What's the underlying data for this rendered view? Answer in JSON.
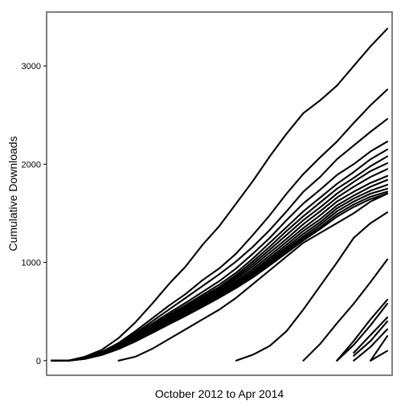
{
  "chart_data": {
    "type": "line",
    "title": "",
    "xlabel": "October 2012 to Apr 2014",
    "ylabel": "Cumulative Downloads",
    "x_label_display": "October 2012 to Apr 2014",
    "y_label_display": "Cumulative Downloads",
    "x": [
      0,
      5,
      10,
      15,
      20,
      25,
      30,
      35,
      40,
      45,
      50,
      55,
      60,
      65,
      70,
      75,
      80,
      85,
      90,
      95,
      100
    ],
    "xlim": [
      0,
      100
    ],
    "ylim": [
      -100,
      3500
    ],
    "yticks": [
      0,
      1000,
      2000,
      3000
    ],
    "ytick_labels": [
      "0",
      "1000",
      "2000",
      "3000"
    ],
    "grid": false,
    "legend": "none",
    "colors": {
      "line": "#000000",
      "border": "#7f7f7f",
      "background": "#ffffff"
    },
    "series": [
      {
        "values": [
          0,
          0,
          40,
          110,
          230,
          390,
          580,
          780,
          960,
          1180,
          1370,
          1600,
          1830,
          2080,
          2310,
          2520,
          2650,
          2800,
          3000,
          3200,
          3380
        ]
      },
      {
        "values": [
          0,
          0,
          30,
          90,
          180,
          300,
          430,
          560,
          680,
          820,
          940,
          1090,
          1280,
          1480,
          1700,
          1900,
          2070,
          2230,
          2420,
          2600,
          2760
        ]
      },
      {
        "values": [
          0,
          0,
          28,
          85,
          170,
          280,
          400,
          520,
          640,
          760,
          880,
          1010,
          1160,
          1330,
          1520,
          1720,
          1870,
          2050,
          2190,
          2330,
          2460
        ]
      },
      {
        "values": [
          0,
          0,
          26,
          80,
          160,
          265,
          375,
          485,
          590,
          700,
          810,
          940,
          1090,
          1250,
          1430,
          1600,
          1740,
          1890,
          2000,
          2130,
          2230
        ]
      },
      {
        "values": [
          0,
          0,
          25,
          78,
          155,
          255,
          360,
          465,
          565,
          670,
          775,
          895,
          1040,
          1200,
          1360,
          1520,
          1660,
          1800,
          1920,
          2050,
          2150
        ]
      },
      {
        "values": [
          0,
          0,
          24,
          75,
          150,
          248,
          350,
          450,
          548,
          650,
          750,
          870,
          1010,
          1160,
          1320,
          1470,
          1610,
          1750,
          1860,
          1980,
          2080
        ]
      },
      {
        "values": [
          0,
          0,
          23,
          72,
          145,
          240,
          340,
          440,
          535,
          635,
          735,
          850,
          985,
          1130,
          1280,
          1430,
          1560,
          1700,
          1820,
          1930,
          2010
        ]
      },
      {
        "values": [
          0,
          0,
          22,
          70,
          140,
          232,
          330,
          428,
          522,
          620,
          718,
          830,
          960,
          1100,
          1240,
          1390,
          1520,
          1660,
          1770,
          1870,
          1950
        ]
      },
      {
        "values": [
          0,
          0,
          21,
          68,
          136,
          225,
          320,
          415,
          508,
          605,
          702,
          810,
          935,
          1070,
          1210,
          1350,
          1480,
          1620,
          1720,
          1810,
          1880
        ]
      },
      {
        "values": [
          0,
          0,
          20,
          66,
          132,
          218,
          312,
          405,
          497,
          592,
          688,
          792,
          912,
          1045,
          1180,
          1320,
          1440,
          1580,
          1680,
          1770,
          1840
        ]
      },
      {
        "values": [
          0,
          0,
          20,
          64,
          128,
          212,
          304,
          396,
          486,
          580,
          675,
          778,
          895,
          1025,
          1155,
          1290,
          1410,
          1550,
          1650,
          1730,
          1790
        ]
      },
      {
        "values": [
          0,
          0,
          19,
          62,
          125,
          206,
          296,
          387,
          476,
          569,
          663,
          765,
          878,
          1005,
          1135,
          1265,
          1385,
          1520,
          1620,
          1700,
          1750
        ]
      },
      {
        "values": [
          0,
          0,
          18,
          60,
          122,
          200,
          288,
          378,
          466,
          558,
          652,
          752,
          862,
          987,
          1115,
          1245,
          1360,
          1490,
          1590,
          1670,
          1720
        ]
      },
      {
        "values": [
          0,
          0,
          18,
          58,
          118,
          195,
          282,
          370,
          457,
          548,
          641,
          740,
          848,
          970,
          1096,
          1225,
          1340,
          1465,
          1565,
          1645,
          1700
        ]
      },
      {
        "values": [
          null,
          null,
          null,
          null,
          0,
          40,
          120,
          220,
          320,
          420,
          520,
          640,
          780,
          920,
          1060,
          1200,
          1300,
          1400,
          1500,
          1620,
          1700
        ]
      },
      {
        "values": [
          null,
          null,
          null,
          null,
          null,
          null,
          null,
          null,
          null,
          null,
          null,
          0,
          60,
          150,
          300,
          520,
          760,
          1000,
          1250,
          1400,
          1510
        ]
      },
      {
        "values": [
          null,
          null,
          null,
          null,
          null,
          null,
          null,
          null,
          null,
          null,
          null,
          null,
          null,
          null,
          null,
          0,
          170,
          380,
          580,
          800,
          1030
        ]
      },
      {
        "values": [
          null,
          null,
          null,
          null,
          null,
          null,
          null,
          null,
          null,
          null,
          null,
          null,
          null,
          null,
          null,
          null,
          null,
          0,
          200,
          420,
          620
        ]
      },
      {
        "values": [
          null,
          null,
          null,
          null,
          null,
          null,
          null,
          null,
          null,
          null,
          null,
          null,
          null,
          null,
          null,
          null,
          null,
          0,
          160,
          360,
          580
        ]
      },
      {
        "values": [
          null,
          null,
          null,
          null,
          null,
          null,
          null,
          null,
          null,
          null,
          null,
          null,
          null,
          null,
          null,
          null,
          null,
          null,
          80,
          260,
          440
        ]
      },
      {
        "values": [
          null,
          null,
          null,
          null,
          null,
          null,
          null,
          null,
          null,
          null,
          null,
          null,
          null,
          null,
          null,
          null,
          null,
          null,
          50,
          200,
          400
        ]
      },
      {
        "values": [
          null,
          null,
          null,
          null,
          null,
          null,
          null,
          null,
          null,
          null,
          null,
          null,
          null,
          null,
          null,
          null,
          null,
          null,
          0,
          140,
          320
        ]
      },
      {
        "values": [
          null,
          null,
          null,
          null,
          null,
          null,
          null,
          null,
          null,
          null,
          null,
          null,
          null,
          null,
          null,
          null,
          null,
          null,
          null,
          0,
          250
        ]
      },
      {
        "values": [
          null,
          null,
          null,
          null,
          null,
          null,
          null,
          null,
          null,
          null,
          null,
          null,
          null,
          null,
          null,
          null,
          null,
          null,
          null,
          0,
          100
        ]
      },
      {
        "values": [
          null,
          null,
          null,
          null,
          null,
          null,
          null,
          null,
          null,
          null,
          null,
          null,
          null,
          null,
          null,
          null,
          null,
          null,
          null,
          null,
          0
        ]
      }
    ]
  }
}
